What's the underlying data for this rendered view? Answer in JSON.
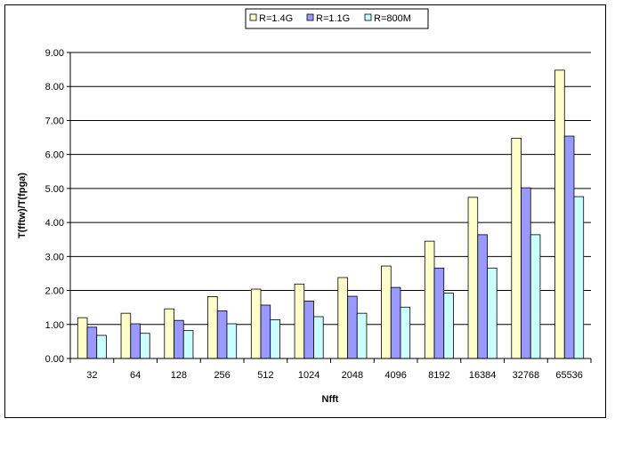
{
  "chart_data": {
    "type": "bar",
    "title": "",
    "xlabel": "Nfft",
    "ylabel": "T(fftw)/T(fpga)",
    "categories": [
      "32",
      "64",
      "128",
      "256",
      "512",
      "1024",
      "2048",
      "4096",
      "8192",
      "16384",
      "32768",
      "65536"
    ],
    "series": [
      {
        "name": "R=1.4G",
        "color": "#ffffcc",
        "values": [
          1.2,
          1.33,
          1.46,
          1.82,
          2.04,
          2.19,
          2.38,
          2.72,
          3.45,
          4.74,
          6.48,
          8.48
        ]
      },
      {
        "name": "R=1.1G",
        "color": "#9999ff",
        "values": [
          0.92,
          1.02,
          1.12,
          1.4,
          1.57,
          1.69,
          1.83,
          2.09,
          2.66,
          3.64,
          5.02,
          6.54
        ]
      },
      {
        "name": "R=800M",
        "color": "#ccffff",
        "values": [
          0.68,
          0.74,
          0.82,
          1.02,
          1.14,
          1.23,
          1.33,
          1.51,
          1.92,
          2.66,
          3.64,
          4.76
        ]
      }
    ],
    "ylim": [
      0,
      9
    ],
    "ytick_step": 1,
    "ytick_labels": [
      "0.00",
      "1.00",
      "2.00",
      "3.00",
      "4.00",
      "5.00",
      "6.00",
      "7.00",
      "8.00",
      "9.00"
    ],
    "grid": true,
    "legend_position": "top-right",
    "plot_background": "#ffffff"
  }
}
